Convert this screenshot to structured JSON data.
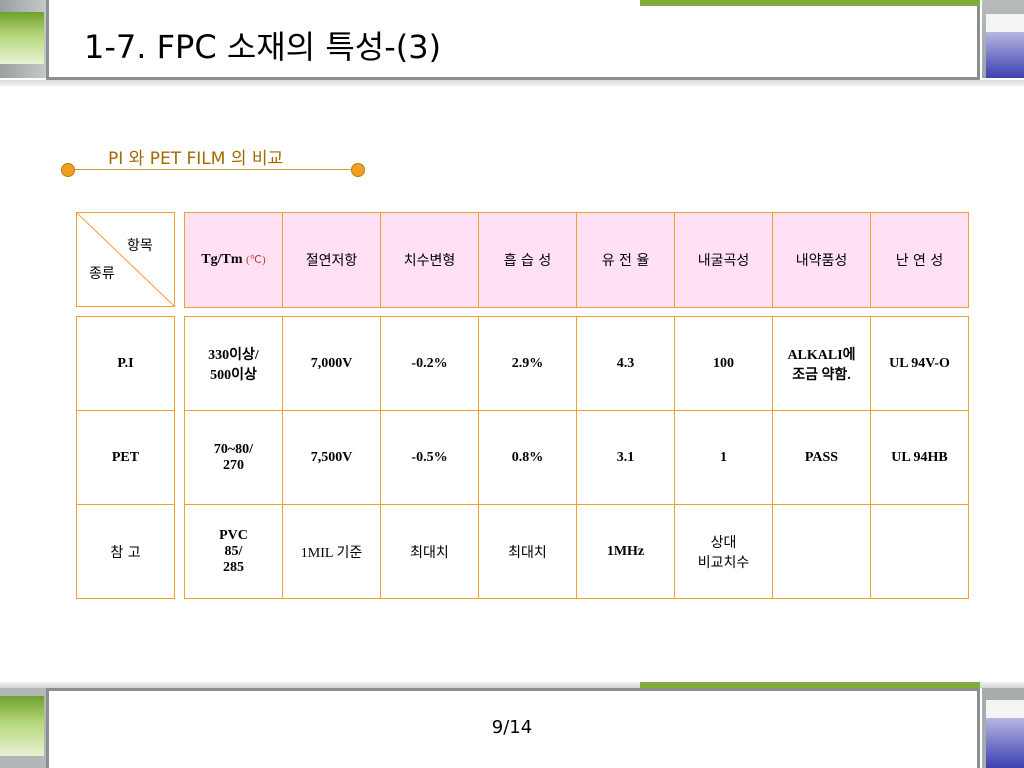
{
  "title": "1-7. FPC 소재의 특성-(3)",
  "subheading": "PI 와 PET FILM 의 비교",
  "page_number": "9/14",
  "corner": {
    "top": "항목",
    "bottom": "종류"
  },
  "header": {
    "tg_tm": "Tg/Tm",
    "tg_tm_unit": "(℃)",
    "insulation": "절연저항",
    "dimension": "치수변형",
    "moisture": "흡 습 성",
    "dielectric": "유 전 율",
    "flex": "내굴곡성",
    "chemical": "내약품성",
    "flame": "난 연 성"
  },
  "rows": [
    {
      "name": "P.I",
      "tg_tm_line1": "330이상/",
      "tg_tm_line2": "500이상",
      "tg_tm_line3": "",
      "insulation": "7,000V",
      "dimension": "-0.2%",
      "moisture": "2.9%",
      "dielectric": "4.3",
      "flex_line1": "100",
      "flex_line2": "",
      "chemical_line1": "ALKALI에",
      "chemical_line2": "조금 약함.",
      "flame": "UL 94V-O"
    },
    {
      "name": "PET",
      "tg_tm_line1": "70~80/",
      "tg_tm_line2": "270",
      "tg_tm_line3": "",
      "insulation": "7,500V",
      "dimension": "-0.5%",
      "moisture": "0.8%",
      "dielectric": "3.1",
      "flex_line1": "1",
      "flex_line2": "",
      "chemical_line1": "PASS",
      "chemical_line2": "",
      "flame": "UL 94HB"
    },
    {
      "name": "참 고",
      "tg_tm_line1": "PVC",
      "tg_tm_line2": "85/",
      "tg_tm_line3": "285",
      "insulation": "1MIL 기준",
      "dimension": "최대치",
      "moisture": "최대치",
      "dielectric": "1MHz",
      "flex_line1": "상대",
      "flex_line2": "비교치수",
      "chemical_line1": "",
      "chemical_line2": "",
      "flame": ""
    }
  ]
}
